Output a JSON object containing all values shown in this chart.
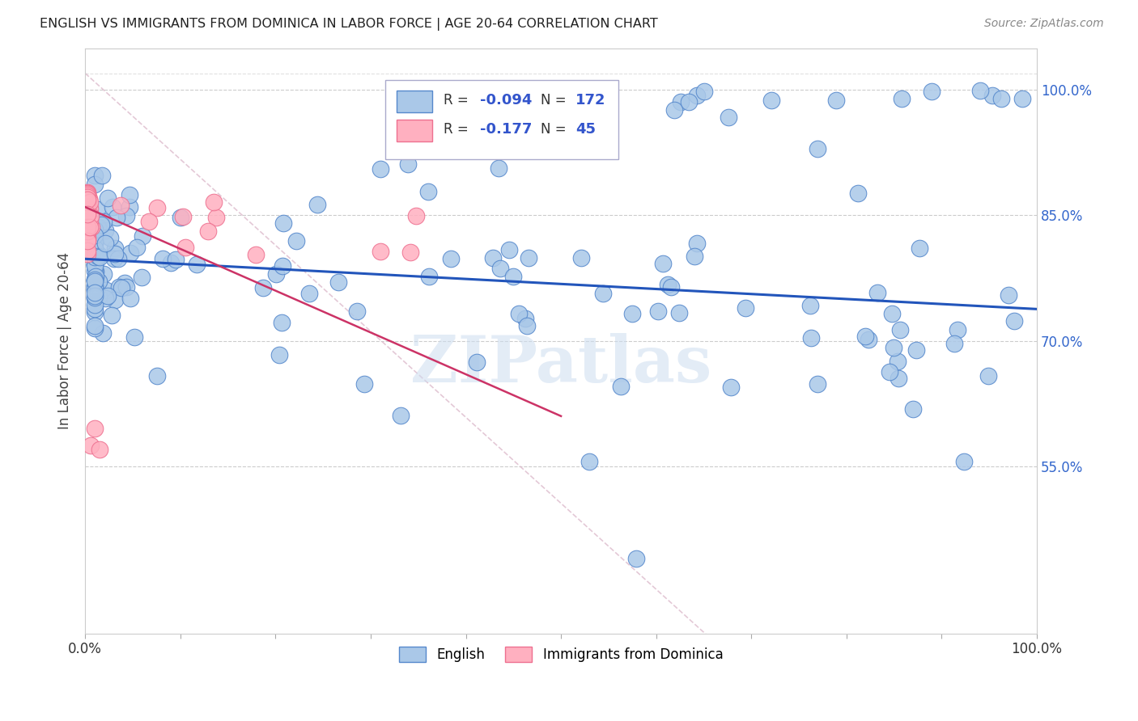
{
  "title": "ENGLISH VS IMMIGRANTS FROM DOMINICA IN LABOR FORCE | AGE 20-64 CORRELATION CHART",
  "source": "Source: ZipAtlas.com",
  "ylabel": "In Labor Force | Age 20-64",
  "xlim": [
    0.0,
    1.0
  ],
  "ylim": [
    0.35,
    1.05
  ],
  "y_ticks": [
    0.55,
    0.7,
    0.85,
    1.0
  ],
  "y_tick_labels": [
    "55.0%",
    "70.0%",
    "85.0%",
    "100.0%"
  ],
  "grid_color": "#cccccc",
  "background_color": "#ffffff",
  "blue_scatter_face": "#aac8e8",
  "blue_scatter_edge": "#5588cc",
  "pink_scatter_face": "#ffb0c0",
  "pink_scatter_edge": "#ee7090",
  "blue_line_color": "#2255bb",
  "pink_line_color": "#cc3366",
  "watermark": "ZIPatlas",
  "legend_label_blue": "English",
  "legend_label_pink": "Immigrants from Dominica"
}
